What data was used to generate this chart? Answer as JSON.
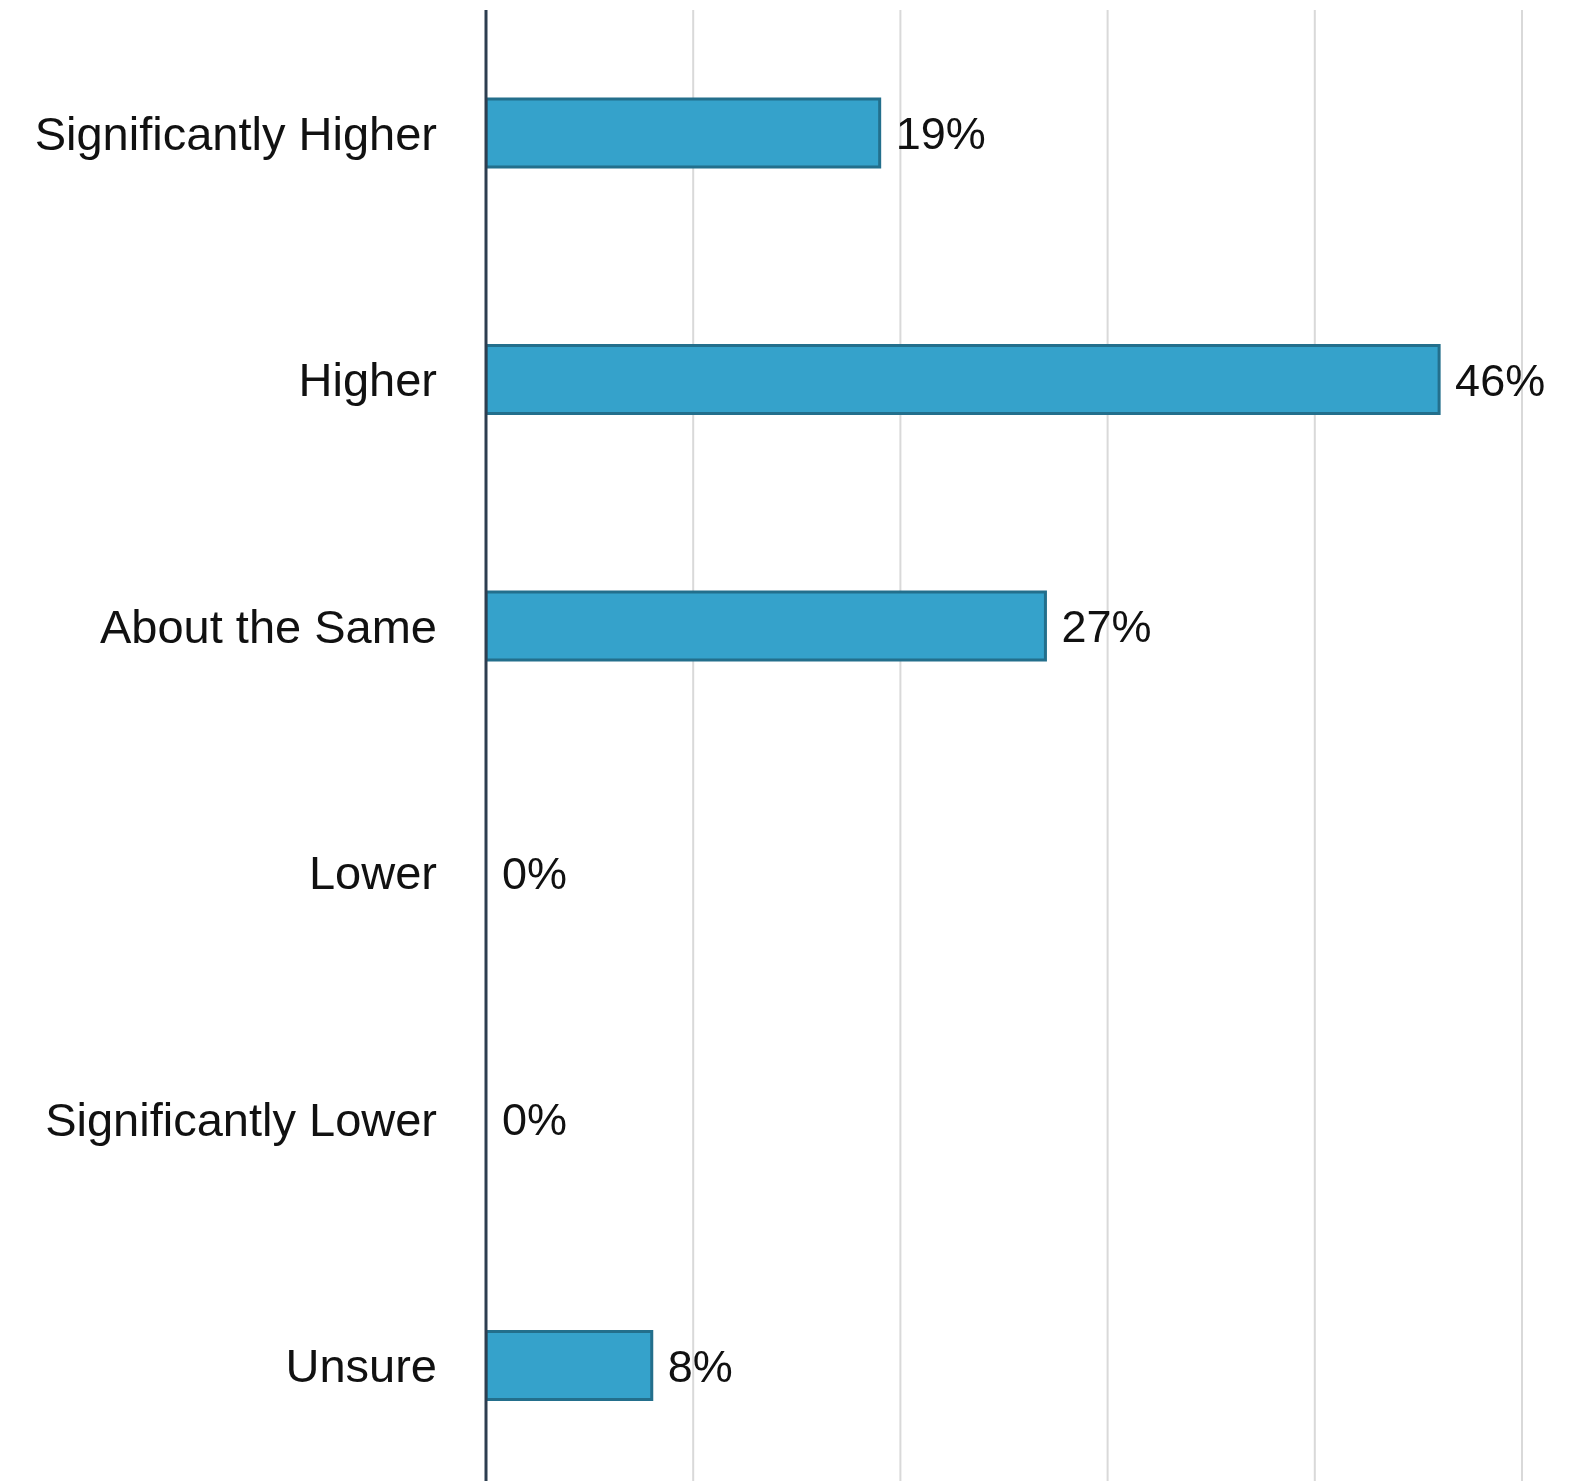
{
  "chart_data": {
    "type": "bar",
    "orientation": "horizontal",
    "categories": [
      "Significantly Higher",
      "Higher",
      "About the Same",
      "Lower",
      "Significantly Lower",
      "Unsure"
    ],
    "values": [
      19,
      46,
      27,
      0,
      0,
      8
    ],
    "color": "#35a2cb",
    "value_labels": [
      "19%",
      "46%",
      "27%",
      "0%",
      "0%",
      "8%"
    ],
    "xlim": [
      0,
      50
    ],
    "xticks": [
      {
        "value": 0,
        "label": null
      },
      {
        "value": 10,
        "label": null
      },
      {
        "value": 20,
        "label": null
      },
      {
        "value": 30,
        "label": null
      },
      {
        "value": 40,
        "label": null
      },
      {
        "value": 50,
        "label": null
      }
    ],
    "grid": "x",
    "tick_labels": "y"
  }
}
